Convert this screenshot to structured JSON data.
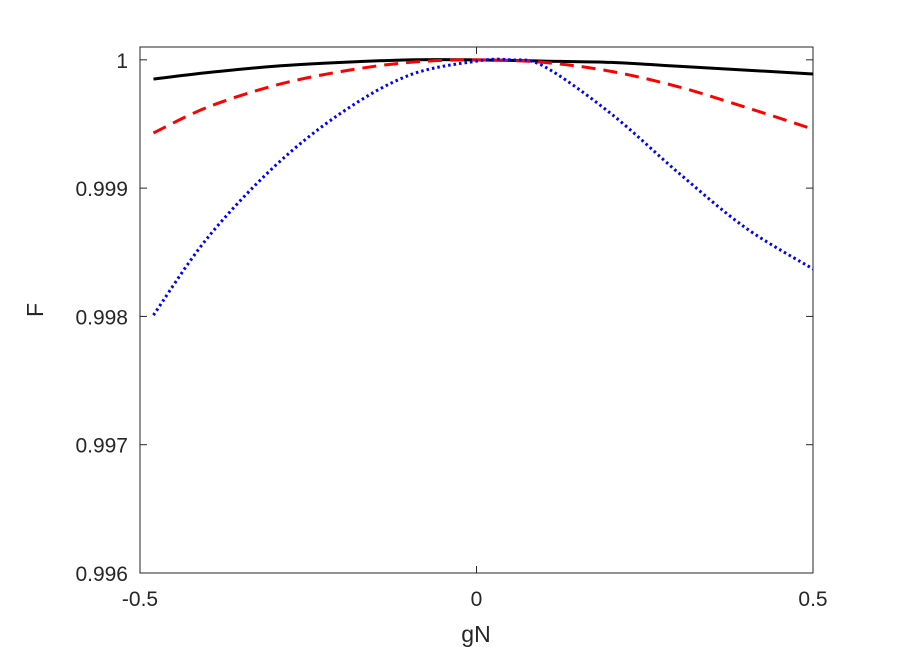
{
  "chart_data": {
    "type": "line",
    "title": "",
    "xlabel": "gN",
    "ylabel": "F",
    "xlim": [
      -0.5,
      0.5
    ],
    "ylim": [
      0.996,
      1.0001
    ],
    "xticks": [
      -0.5,
      0,
      0.5
    ],
    "xtick_labels": [
      "-0.5",
      "0",
      "0.5"
    ],
    "yticks": [
      0.996,
      0.997,
      0.998,
      0.999,
      1
    ],
    "ytick_labels": [
      "0.996",
      "0.997",
      "0.998",
      "0.999",
      "1"
    ],
    "grid": false,
    "legend": "none",
    "series": [
      {
        "color": "#000000",
        "style": "solid",
        "x": [
          -0.48,
          -0.4,
          -0.3,
          -0.2,
          -0.1,
          0,
          0.1,
          0.2,
          0.3,
          0.4,
          0.5
        ],
        "y": [
          0.99985,
          0.9999,
          0.99995,
          0.99998,
          1.0,
          1.0,
          0.99999,
          0.99998,
          0.99995,
          0.99992,
          0.99989
        ]
      },
      {
        "color": "#ff0000",
        "style": "dashed",
        "x": [
          -0.48,
          -0.4,
          -0.3,
          -0.2,
          -0.1,
          0,
          0.1,
          0.2,
          0.3,
          0.4,
          0.5
        ],
        "y": [
          0.99943,
          0.99963,
          0.9998,
          0.99991,
          0.99998,
          1.0,
          0.99998,
          0.99991,
          0.99979,
          0.99963,
          0.99946
        ]
      },
      {
        "color": "#0000ff",
        "style": "dotted",
        "x": [
          -0.48,
          -0.4,
          -0.3,
          -0.2,
          -0.1,
          0,
          0.05,
          0.1,
          0.2,
          0.3,
          0.4,
          0.5
        ],
        "y": [
          0.99801,
          0.99861,
          0.99917,
          0.99959,
          0.99988,
          0.99999,
          1.0,
          0.99995,
          0.99958,
          0.99912,
          0.99869,
          0.99837
        ]
      }
    ]
  }
}
